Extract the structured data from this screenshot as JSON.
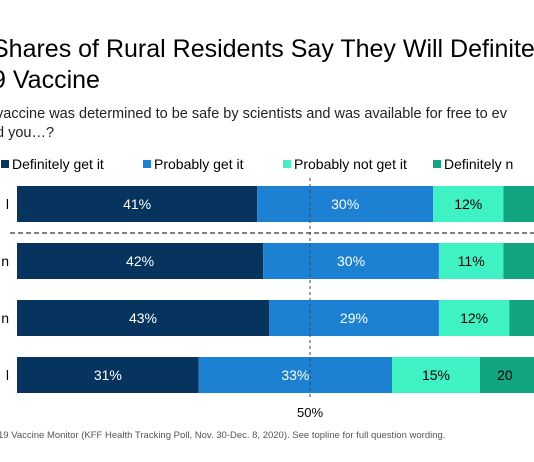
{
  "title": "Shares of Rural Residents Say They Will Definite\n9 Vaccine",
  "subtitle": "vaccine was determined to be safe by scientists and was available for free to ev\nd you…?",
  "footnote": "19 Vaccine Monitor (KFF Health Tracking Poll, Nov. 30-Dec. 8, 2020). See topline for full question wording.",
  "colors": {
    "definitely_get": "#06345e",
    "probably_get": "#1d81d3",
    "probably_not": "#3ff2c3",
    "definitely_not": "#11a680"
  },
  "chart_data": {
    "type": "bar",
    "orientation": "horizontal",
    "stacked": true,
    "categories": [
      "l",
      "n",
      "n",
      "l"
    ],
    "series": [
      {
        "name": "Definitely get it",
        "values": [
          41,
          42,
          43,
          31
        ],
        "labels": [
          "41%",
          "42%",
          "43%",
          "31%"
        ]
      },
      {
        "name": "Probably get it",
        "values": [
          30,
          30,
          29,
          33
        ],
        "labels": [
          "30%",
          "30%",
          "29%",
          "33%"
        ]
      },
      {
        "name": "Probably not get it",
        "values": [
          12,
          11,
          12,
          15
        ],
        "labels": [
          "12%",
          "11%",
          "12%",
          "15%"
        ]
      },
      {
        "name": "Definitely n",
        "values": [
          10,
          10,
          10,
          20
        ],
        "labels": [
          "",
          "",
          "",
          "20"
        ]
      }
    ],
    "xlim": [
      0,
      100
    ],
    "reference_line": {
      "value": 50,
      "label": "50%"
    },
    "legend_position": "top"
  }
}
